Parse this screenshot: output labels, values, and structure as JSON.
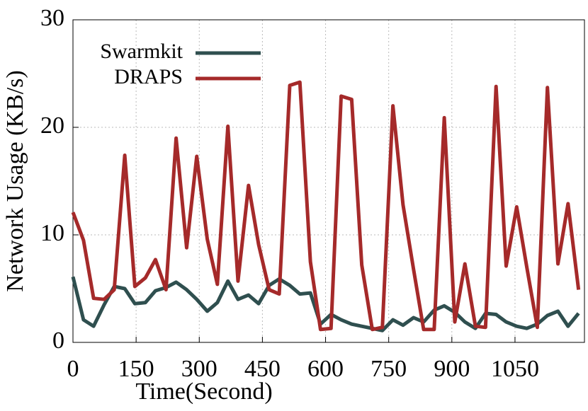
{
  "chart_data": {
    "type": "line",
    "xlabel": "Time(Second)",
    "ylabel": "Network Usage (KB/s)",
    "x": [
      0,
      25,
      49,
      74,
      98,
      123,
      147,
      172,
      196,
      221,
      245,
      270,
      294,
      319,
      343,
      368,
      392,
      417,
      441,
      466,
      490,
      515,
      539,
      564,
      588,
      613,
      637,
      662,
      686,
      711,
      735,
      760,
      784,
      809,
      833,
      858,
      882,
      907,
      931,
      956,
      980,
      1005,
      1029,
      1054,
      1078,
      1103,
      1127,
      1152,
      1176,
      1201
    ],
    "series": [
      {
        "name": "Swarmkit",
        "color": "#2f4f4f",
        "values": [
          6.1,
          2.1,
          1.5,
          3.5,
          5.2,
          5.0,
          3.6,
          3.7,
          4.8,
          5.1,
          5.6,
          4.9,
          4.0,
          2.9,
          3.7,
          5.7,
          4.0,
          4.4,
          3.6,
          5.3,
          5.9,
          5.3,
          4.5,
          4.6,
          1.7,
          2.6,
          2.1,
          1.7,
          1.5,
          1.3,
          1.1,
          2.1,
          1.6,
          2.3,
          1.9,
          3.0,
          3.4,
          2.8,
          1.9,
          1.3,
          2.7,
          2.6,
          1.9,
          1.5,
          1.3,
          1.7,
          2.5,
          2.9,
          1.5,
          2.7
        ]
      },
      {
        "name": "DRAPS",
        "color": "#a52a2a",
        "values": [
          12.1,
          9.5,
          4.1,
          4.0,
          4.9,
          17.4,
          5.2,
          6.0,
          7.7,
          4.9,
          19.0,
          8.8,
          17.3,
          9.6,
          5.4,
          20.1,
          5.7,
          14.6,
          9.1,
          4.9,
          4.5,
          23.9,
          24.2,
          7.5,
          1.2,
          1.3,
          22.9,
          22.6,
          7.2,
          1.2,
          1.4,
          22.0,
          12.8,
          6.8,
          1.2,
          1.2,
          20.9,
          1.9,
          7.3,
          1.5,
          1.4,
          23.8,
          7.1,
          12.6,
          7.0,
          1.4,
          23.7,
          7.3,
          12.9,
          4.9
        ]
      }
    ],
    "xlim": [
      0,
      1215
    ],
    "xticks": [
      0,
      150,
      300,
      450,
      600,
      750,
      900,
      1050
    ],
    "ylim": [
      0,
      30
    ],
    "yticks": [
      0,
      10,
      20,
      30
    ],
    "grid": true,
    "legend": "top-left"
  }
}
